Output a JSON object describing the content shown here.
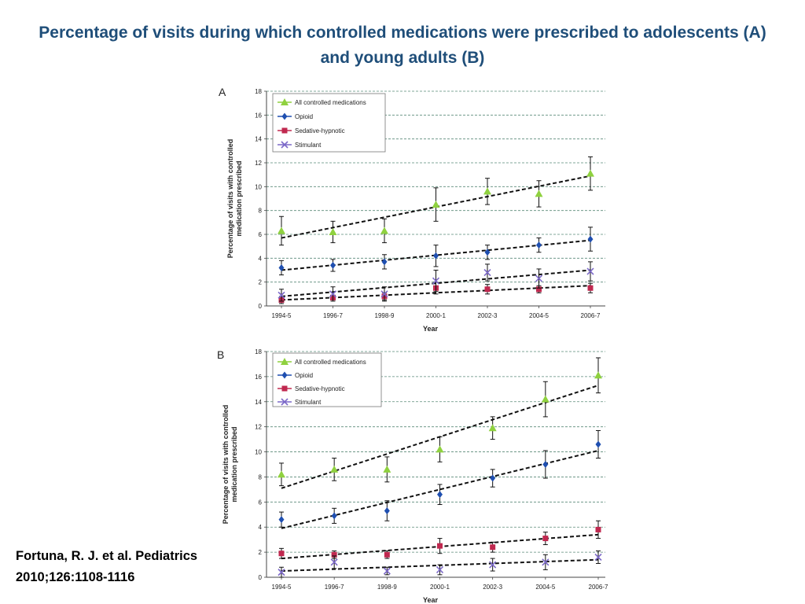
{
  "title": {
    "line1": "Percentage of visits during which controlled medications were prescribed to adolescents (A)",
    "line2": "and young adults (B)"
  },
  "citation": {
    "line1": "Fortuna, R. J. et al. Pediatrics",
    "line2": "2010;126:1108-1116"
  },
  "chart_data": [
    {
      "type": "scatter",
      "panel": "A",
      "categories": [
        "1994-5",
        "1996-7",
        "1998-9",
        "2000-1",
        "2002-3",
        "2004-5",
        "2006-7"
      ],
      "xlabel": "Year",
      "ylabel_lines": [
        "Percentage  of  visits with controlled",
        "medication prescribed"
      ],
      "ylim": [
        0,
        18
      ],
      "yticks": [
        0,
        2,
        4,
        6,
        8,
        10,
        12,
        14,
        16,
        18
      ],
      "grid": "horizontal dashed",
      "legend_position": "top-left",
      "series": [
        {
          "name": "All controlled  medications",
          "marker": "triangle",
          "color": "#8fd13f",
          "values": [
            6.3,
            6.2,
            6.3,
            8.5,
            9.6,
            9.4,
            11.1
          ],
          "errors": [
            1.2,
            0.9,
            1.0,
            1.4,
            1.1,
            1.1,
            1.4
          ],
          "trend": [
            5.7,
            10.9
          ]
        },
        {
          "name": "Opioid",
          "marker": "diamond",
          "color": "#1f4fb0",
          "values": [
            3.2,
            3.4,
            3.7,
            4.2,
            4.5,
            5.1,
            5.6
          ],
          "errors": [
            0.6,
            0.5,
            0.6,
            0.9,
            0.6,
            0.6,
            1.0
          ],
          "trend": [
            3.0,
            5.5
          ]
        },
        {
          "name": "Sedative-hypnotic",
          "marker": "square",
          "color": "#c0284f",
          "values": [
            0.5,
            0.7,
            0.8,
            1.5,
            1.4,
            1.4,
            1.5
          ],
          "errors": [
            0.3,
            0.2,
            0.3,
            0.5,
            0.4,
            0.3,
            0.4
          ],
          "trend": [
            0.5,
            1.7
          ]
        },
        {
          "name": "Stimulant",
          "marker": "x",
          "color": "#7b68c8",
          "values": [
            0.9,
            1.0,
            1.0,
            2.1,
            2.8,
            2.3,
            2.9
          ],
          "errors": [
            0.5,
            0.6,
            0.6,
            0.9,
            0.7,
            0.8,
            0.8
          ],
          "trend": [
            0.8,
            3.0
          ]
        }
      ]
    },
    {
      "type": "scatter",
      "panel": "B",
      "categories": [
        "1994-5",
        "1996-7",
        "1998-9",
        "2000-1",
        "2002-3",
        "2004-5",
        "2006-7"
      ],
      "xlabel": "Year",
      "ylabel_lines": [
        "Percentage of visits with controlled",
        "medication prescribed"
      ],
      "ylim": [
        0,
        18
      ],
      "yticks": [
        0,
        2,
        4,
        6,
        8,
        10,
        12,
        14,
        16,
        18
      ],
      "grid": "horizontal dashed",
      "legend_position": "top-left",
      "series": [
        {
          "name": "All controlled  medications",
          "marker": "triangle",
          "color": "#8fd13f",
          "values": [
            8.2,
            8.6,
            8.6,
            10.2,
            11.9,
            14.2,
            16.1
          ],
          "errors": [
            0.9,
            0.9,
            1.0,
            1.0,
            0.9,
            1.4,
            1.4
          ],
          "trend": [
            7.1,
            15.3
          ]
        },
        {
          "name": "Opioid",
          "marker": "diamond",
          "color": "#1f4fb0",
          "values": [
            4.6,
            4.9,
            5.3,
            6.6,
            7.9,
            9.0,
            10.6
          ],
          "errors": [
            0.6,
            0.6,
            0.8,
            0.8,
            0.7,
            1.1,
            1.1
          ],
          "trend": [
            3.9,
            10.1
          ]
        },
        {
          "name": "Sedative-hypnotic",
          "marker": "square",
          "color": "#c0284f",
          "values": [
            1.9,
            1.8,
            1.8,
            2.5,
            2.4,
            3.1,
            3.8
          ],
          "errors": [
            0.4,
            0.3,
            0.3,
            0.6,
            0.4,
            0.5,
            0.7
          ],
          "trend": [
            1.5,
            3.4
          ]
        },
        {
          "name": "Stimulant",
          "marker": "x",
          "color": "#7b68c8",
          "values": [
            0.4,
            1.2,
            0.5,
            0.6,
            1.0,
            1.2,
            1.6
          ],
          "errors": [
            0.4,
            0.5,
            0.3,
            0.4,
            0.5,
            0.6,
            0.5
          ],
          "trend": [
            0.5,
            1.4
          ]
        }
      ]
    }
  ]
}
